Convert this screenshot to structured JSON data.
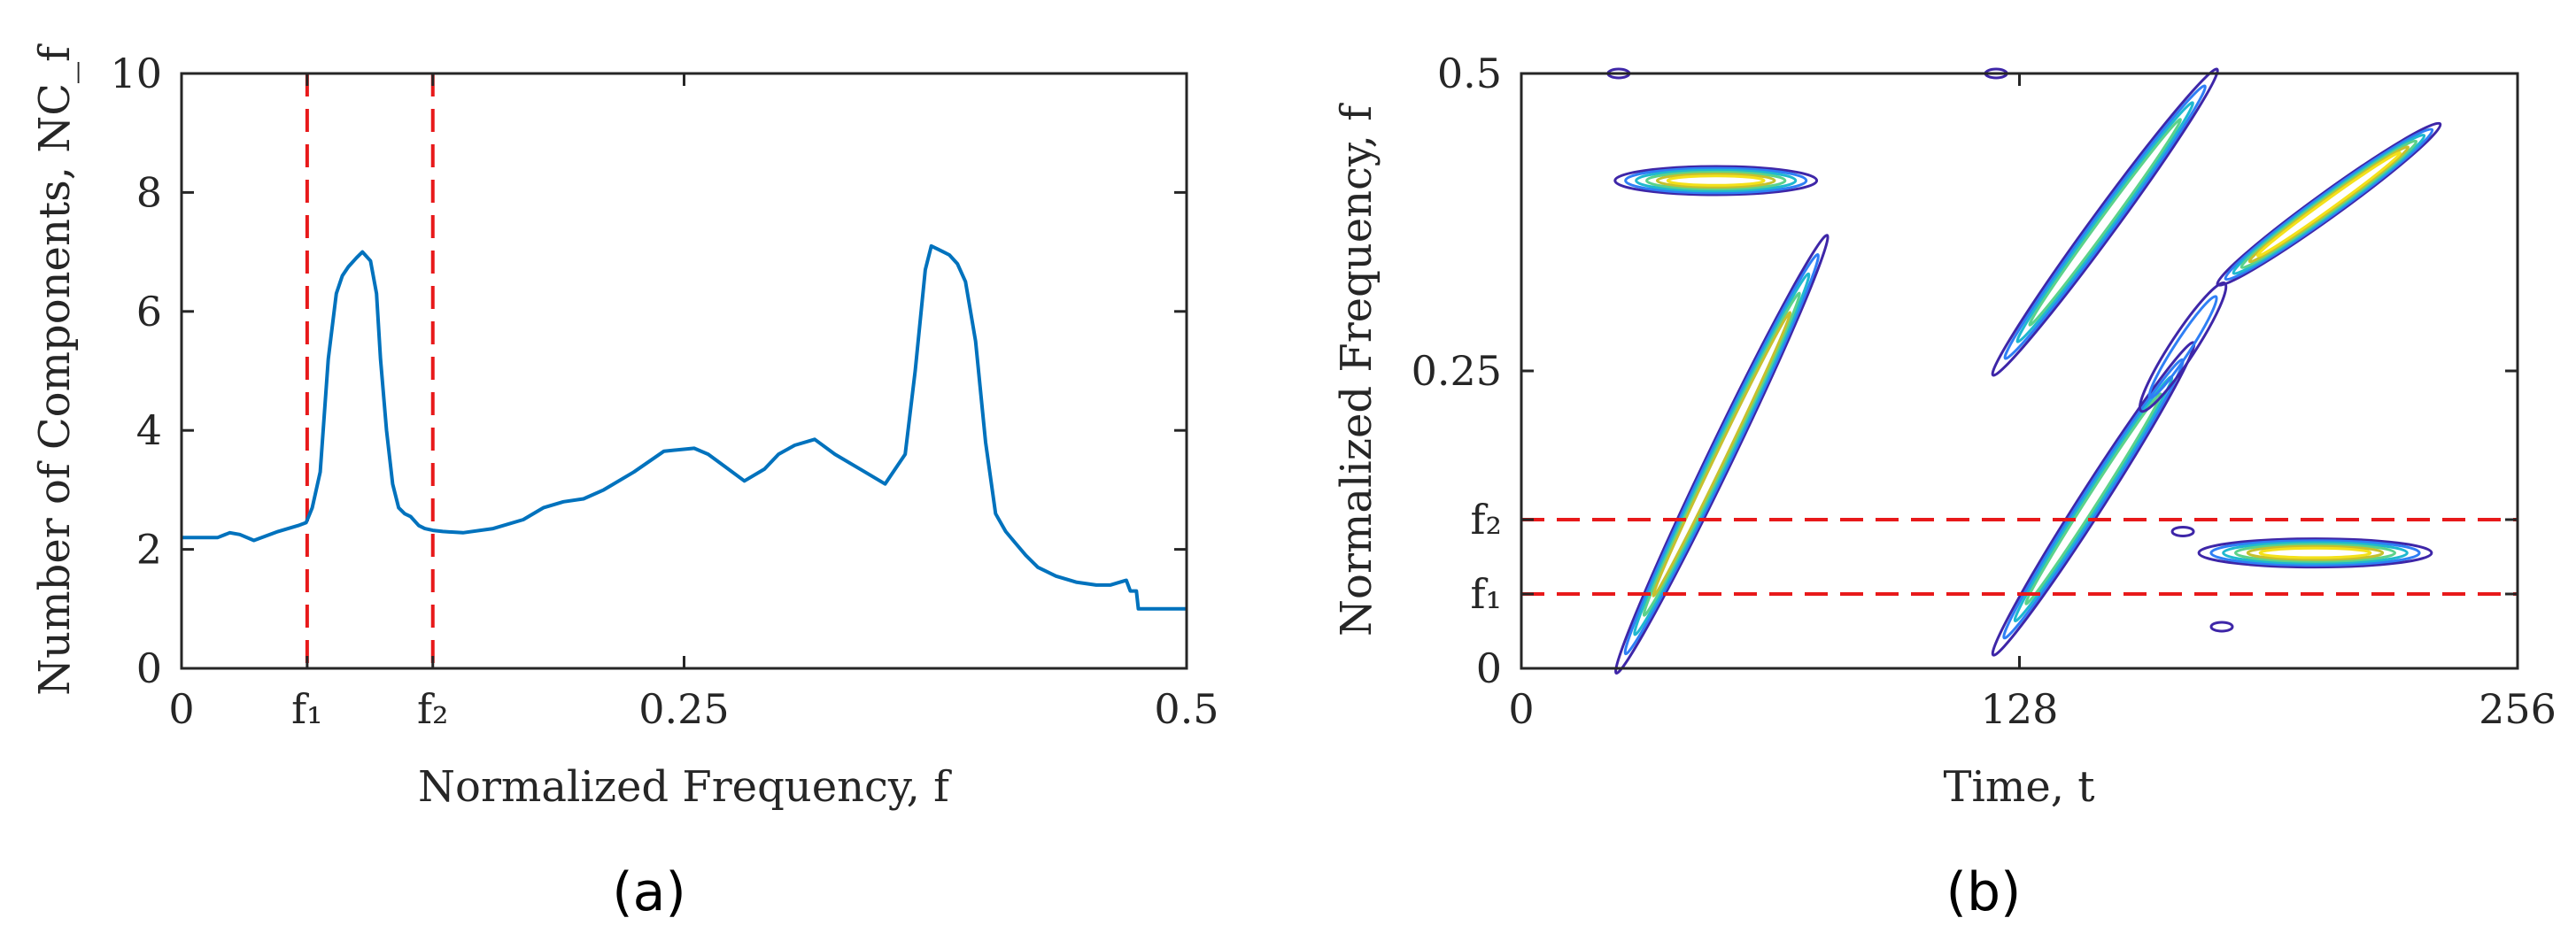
{
  "chart_data": [
    {
      "panel": "a",
      "panel_label": "(a)",
      "type": "line",
      "xlabel": "Normalized Frequency, f",
      "ylabel": "Number of Components, NC_f",
      "xlim": [
        0,
        0.5
      ],
      "ylim": [
        0,
        10
      ],
      "xticks": [
        {
          "value": 0,
          "label": "0"
        },
        {
          "value": 0.0625,
          "label": "f₁"
        },
        {
          "value": 0.125,
          "label": "f₂"
        },
        {
          "value": 0.25,
          "label": "0.25"
        },
        {
          "value": 0.5,
          "label": "0.5"
        }
      ],
      "yticks": [
        {
          "value": 0,
          "label": "0"
        },
        {
          "value": 2,
          "label": "2"
        },
        {
          "value": 4,
          "label": "4"
        },
        {
          "value": 6,
          "label": "6"
        },
        {
          "value": 8,
          "label": "8"
        },
        {
          "value": 10,
          "label": "10"
        }
      ],
      "vlines": [
        {
          "name": "f1",
          "x": 0.0625,
          "color": "#e8191a",
          "style": "dashed"
        },
        {
          "name": "f2",
          "x": 0.125,
          "color": "#e8191a",
          "style": "dashed"
        }
      ],
      "series": [
        {
          "name": "NC_f",
          "color": "#0072bd",
          "x": [
            0,
            0.018,
            0.024,
            0.029,
            0.036,
            0.048,
            0.058,
            0.062,
            0.065,
            0.069,
            0.073,
            0.077,
            0.08,
            0.083,
            0.087,
            0.09,
            0.094,
            0.097,
            0.099,
            0.102,
            0.105,
            0.108,
            0.111,
            0.114,
            0.118,
            0.121,
            0.125,
            0.13,
            0.14,
            0.155,
            0.17,
            0.18,
            0.19,
            0.2,
            0.21,
            0.225,
            0.24,
            0.255,
            0.262,
            0.27,
            0.28,
            0.29,
            0.297,
            0.305,
            0.315,
            0.325,
            0.34,
            0.35,
            0.36,
            0.365,
            0.37,
            0.373,
            0.376,
            0.379,
            0.382,
            0.386,
            0.39,
            0.395,
            0.4,
            0.405,
            0.41,
            0.415,
            0.42,
            0.426,
            0.435,
            0.445,
            0.455,
            0.462,
            0.47,
            0.472,
            0.475,
            0.476,
            0.48,
            0.49,
            0.5
          ],
          "y": [
            2.2,
            2.2,
            2.28,
            2.25,
            2.15,
            2.3,
            2.4,
            2.45,
            2.7,
            3.3,
            5.2,
            6.3,
            6.6,
            6.75,
            6.9,
            7.0,
            6.85,
            6.3,
            5.2,
            4.0,
            3.1,
            2.7,
            2.6,
            2.55,
            2.4,
            2.35,
            2.32,
            2.3,
            2.28,
            2.35,
            2.5,
            2.7,
            2.8,
            2.85,
            3.0,
            3.3,
            3.65,
            3.7,
            3.6,
            3.4,
            3.15,
            3.35,
            3.6,
            3.75,
            3.85,
            3.6,
            3.3,
            3.1,
            3.6,
            5.0,
            6.7,
            7.1,
            7.05,
            7.0,
            6.95,
            6.8,
            6.5,
            5.5,
            3.8,
            2.6,
            2.3,
            2.1,
            1.9,
            1.7,
            1.55,
            1.45,
            1.4,
            1.4,
            1.48,
            1.3,
            1.3,
            1.0,
            1.0,
            1.0,
            1.0
          ]
        }
      ]
    },
    {
      "panel": "b",
      "panel_label": "(b)",
      "type": "contour",
      "xlabel": "Time, t",
      "ylabel": "Normalized Frequency, f",
      "xlim": [
        0,
        256
      ],
      "ylim": [
        0,
        0.5
      ],
      "xticks": [
        {
          "value": 0,
          "label": "0"
        },
        {
          "value": 128,
          "label": "128"
        },
        {
          "value": 256,
          "label": "256"
        }
      ],
      "yticks": [
        {
          "value": 0,
          "label": "0"
        },
        {
          "value": 0.0625,
          "label": "f₁"
        },
        {
          "value": 0.125,
          "label": "f₂"
        },
        {
          "value": 0.25,
          "label": "0.25"
        },
        {
          "value": 0.5,
          "label": "0.5"
        }
      ],
      "hlines": [
        {
          "name": "f1",
          "y": 0.0625,
          "color": "#e8191a",
          "style": "dashed"
        },
        {
          "name": "f2",
          "y": 0.125,
          "color": "#e8191a",
          "style": "dashed"
        }
      ],
      "colormap": [
        "#3e26a8",
        "#2f7ff5",
        "#1fb8cf",
        "#5cd28a",
        "#c6c02e",
        "#f4e11a"
      ],
      "components": [
        {
          "name": "chirp-1",
          "kind": "chirp",
          "t": [
            25,
            78
          ],
          "f": [
            0.0,
            0.36
          ],
          "peak": 0.75
        },
        {
          "name": "chirp-2",
          "kind": "chirp",
          "t": [
            122,
            178
          ],
          "f": [
            0.25,
            0.5
          ],
          "peak": 0.6
        },
        {
          "name": "chirp-3",
          "kind": "chirp",
          "t": [
            122,
            172
          ],
          "f": [
            0.015,
            0.27
          ],
          "peak": 0.6
        },
        {
          "name": "chirp-4",
          "kind": "chirp",
          "t": [
            180,
            235
          ],
          "f": [
            0.325,
            0.455
          ],
          "peak": 1.0
        },
        {
          "name": "chirp-4-tail",
          "kind": "chirp",
          "t": [
            160,
            180
          ],
          "f": [
            0.22,
            0.32
          ],
          "peak": 0.25
        },
        {
          "name": "tone-1",
          "kind": "tone",
          "t": [
            25,
            75
          ],
          "f": 0.41,
          "peak": 1.0
        },
        {
          "name": "tone-2",
          "kind": "tone",
          "t": [
            175,
            233
          ],
          "f": 0.097,
          "peak": 1.0
        },
        {
          "name": "blob-1",
          "kind": "blob",
          "t": 170,
          "f": 0.115,
          "peak": 0.3
        },
        {
          "name": "blob-2",
          "kind": "blob",
          "t": 180,
          "f": 0.035,
          "peak": 0.2
        },
        {
          "name": "edge-1",
          "kind": "blob",
          "t": 25,
          "f": 0.5,
          "peak": 0.2
        },
        {
          "name": "edge-2",
          "kind": "blob",
          "t": 122,
          "f": 0.5,
          "peak": 0.2
        }
      ]
    }
  ]
}
